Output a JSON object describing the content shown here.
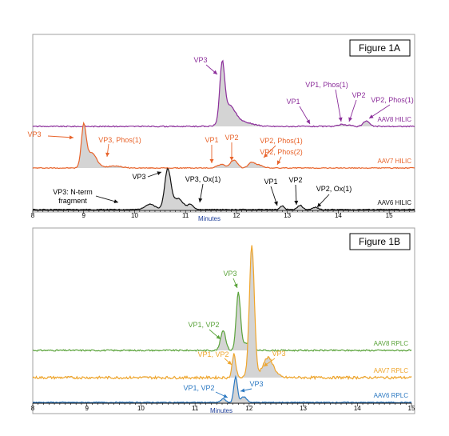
{
  "chart_data": [
    {
      "id": "fig1a",
      "type": "line",
      "figure_label": "Figure 1A",
      "xlabel": "Minutes",
      "xlim": [
        8,
        15.5
      ],
      "ticks": [
        8,
        9,
        10,
        11,
        12,
        13,
        14,
        15
      ],
      "grid": false,
      "series": [
        {
          "name": "AAV8 HILIC",
          "color": "#8b2d9a",
          "peaks": [
            [
              11.72,
              1.0,
              0.07
            ],
            [
              11.85,
              0.35,
              0.18
            ],
            [
              12.1,
              0.08,
              0.3
            ],
            [
              14.05,
              0.035,
              0.08
            ],
            [
              14.2,
              0.03,
              0.08
            ],
            [
              14.55,
              0.1,
              0.09
            ]
          ],
          "annotations": [
            {
              "text": "VP3",
              "x": 11.72
            },
            {
              "text": "VP1",
              "x": 12.85
            },
            {
              "text": "VP1, Phos(1)",
              "x": 14.05
            },
            {
              "text": "VP2",
              "x": 14.2
            },
            {
              "text": "VP2, Phos(1)",
              "x": 14.55
            }
          ]
        },
        {
          "name": "AAV7 HILIC",
          "color": "#e8632a",
          "peaks": [
            [
              9.0,
              0.9,
              0.07
            ],
            [
              9.15,
              0.35,
              0.15
            ],
            [
              9.6,
              0.05,
              0.2
            ],
            [
              11.7,
              0.08,
              0.12
            ],
            [
              11.95,
              0.18,
              0.1
            ],
            [
              12.3,
              0.12,
              0.1
            ],
            [
              12.45,
              0.06,
              0.12
            ]
          ],
          "annotations": [
            {
              "text": "VP3",
              "x": 9.0
            },
            {
              "text": "VP3, Phos(1)",
              "x": 9.45
            },
            {
              "text": "VP1",
              "x": 11.7
            },
            {
              "text": "VP2",
              "x": 11.95
            },
            {
              "text": "VP2, Phos(1)",
              "x": 12.3
            },
            {
              "text": "VP2, Phos(2)",
              "x": 12.6
            }
          ]
        },
        {
          "name": "AAV6 HILIC",
          "color": "#111111",
          "peaks": [
            [
              10.3,
              0.12,
              0.15
            ],
            [
              10.65,
              0.9,
              0.09
            ],
            [
              10.85,
              0.25,
              0.15
            ],
            [
              11.1,
              0.12,
              0.08
            ],
            [
              12.9,
              0.08,
              0.06
            ],
            [
              13.25,
              0.1,
              0.07
            ],
            [
              13.55,
              0.05,
              0.08
            ]
          ],
          "annotations": [
            {
              "text": "VP3: N-term fragment",
              "x": 10.3
            },
            {
              "text": "VP3",
              "x": 10.6
            },
            {
              "text": "VP3, Ox(1)",
              "x": 11.1
            },
            {
              "text": "VP1",
              "x": 12.9
            },
            {
              "text": "VP2",
              "x": 13.25
            },
            {
              "text": "VP2, Ox(1)",
              "x": 13.55
            }
          ]
        }
      ]
    },
    {
      "id": "fig1b",
      "type": "line",
      "figure_label": "Figure 1B",
      "xlabel": "Minutes",
      "xlim": [
        8,
        15
      ],
      "ticks": [
        8,
        9,
        10,
        11,
        12,
        13,
        14,
        15
      ],
      "grid": false,
      "series": [
        {
          "name": "AAV8 RPLC",
          "color": "#5aa33a",
          "peaks": [
            [
              11.52,
              0.28,
              0.07
            ],
            [
              11.8,
              0.8,
              0.06
            ],
            [
              11.95,
              0.1,
              0.1
            ]
          ],
          "annotations": [
            {
              "text": "VP1, VP2",
              "x": 11.52
            },
            {
              "text": "VP3",
              "x": 11.78
            }
          ]
        },
        {
          "name": "AAV7 RPLC",
          "color": "#efa52b",
          "peaks": [
            [
              11.72,
              0.18,
              0.05
            ],
            [
              12.05,
              1.0,
              0.07
            ],
            [
              12.35,
              0.15,
              0.15
            ]
          ],
          "annotations": [
            {
              "text": "VP1, VP2",
              "x": 11.72
            },
            {
              "text": "VP3",
              "x": 12.32
            }
          ]
        },
        {
          "name": "AAV6 RPLC",
          "color": "#2a78c2",
          "peaks": [
            [
              11.52,
              0.08,
              0.06
            ],
            [
              11.75,
              0.55,
              0.05
            ],
            [
              11.9,
              0.12,
              0.08
            ]
          ],
          "annotations": [
            {
              "text": "VP1, VP2",
              "x": 11.52
            },
            {
              "text": "VP3",
              "x": 11.75
            }
          ]
        }
      ]
    }
  ]
}
